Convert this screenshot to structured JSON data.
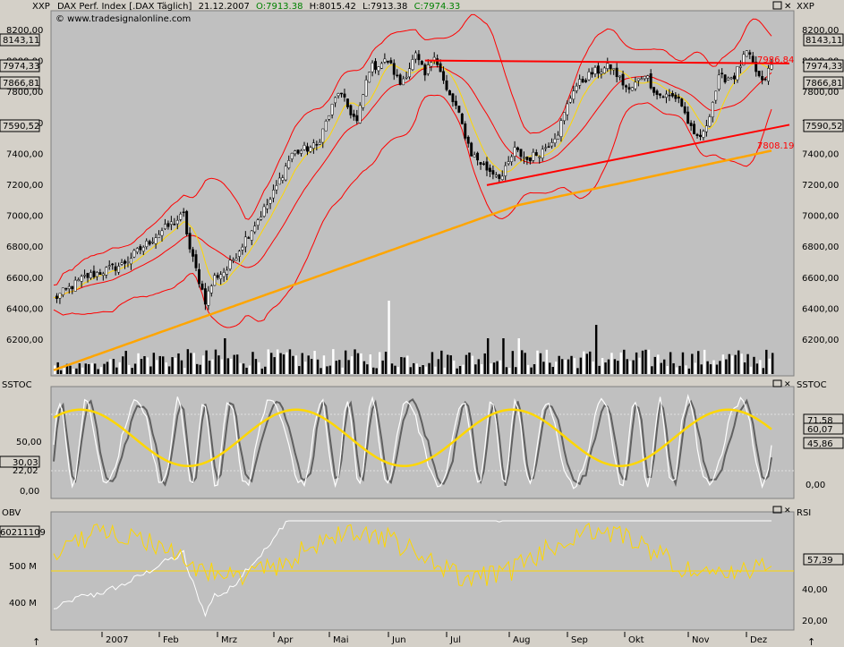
{
  "header": {
    "title": "DAX Perf. Index [.DAX  Täglich]",
    "date": "21.12.2007",
    "open": "O:7913.38",
    "high": "H:8015.42",
    "low": "L:7913.38",
    "close": "C:7974.33",
    "copyright": "© www.tradesignalonline.com",
    "left_symbol": "XXP",
    "right_symbol": "XXP"
  },
  "panels": {
    "stoch_label_left": "SSTOC",
    "stoch_label_right": "SSTOC",
    "obv_label": "OBV",
    "rsi_label": "RSI"
  },
  "price_badges": {
    "left": [
      "8143,11",
      "7974,33",
      "7866,81",
      "7590,52"
    ],
    "right": [
      "8143,11",
      "7974,33",
      "7866,81",
      "7590,52"
    ]
  },
  "annotations": {
    "upper_trend_value": "7986.84",
    "lower_trend_value": "7808.19"
  },
  "stoch_badges": {
    "left": [
      "30,03",
      "22,02"
    ],
    "right": [
      "71,58",
      "60,07",
      "45,86"
    ]
  },
  "obv_badges": {
    "left": "60211109",
    "right": "57,39"
  },
  "colors": {
    "background": "#c0c0c0",
    "bollinger": "#ff0000",
    "trendline": "#ff0000",
    "sma200": "#ffa500",
    "sma20": "#ffd700",
    "stoch_fast": "#ffffff",
    "stoch_slow": "#606060",
    "stoch_signal": "#ffd700",
    "obv": "#ffffff",
    "rsi": "#ffd700"
  },
  "chart_data": [
    {
      "type": "candlestick",
      "title": "DAX Perf. Index [.DAX  Täglich]",
      "y_ticks": [
        "8200,00",
        "8000,00",
        "7800,00",
        "7600,00",
        "7400,00",
        "7200,00",
        "7000,00",
        "6800,00",
        "6600,00",
        "6400,00",
        "6200,00"
      ],
      "y_tick_values": [
        8200,
        8000,
        7800,
        7600,
        7400,
        7200,
        7000,
        6800,
        6600,
        6400,
        6200
      ],
      "ylim": [
        6000,
        8280
      ],
      "x_labels": [
        "2007",
        "Feb",
        "Mrz",
        "Apr",
        "Mai",
        "Jun",
        "Jul",
        "Aug",
        "Sep",
        "Okt",
        "Nov",
        "Dez"
      ],
      "close_anchors": [
        [
          0,
          6460
        ],
        [
          10,
          6600
        ],
        [
          22,
          6680
        ],
        [
          35,
          6900
        ],
        [
          42,
          7000
        ],
        [
          44,
          6780
        ],
        [
          49,
          6450
        ],
        [
          52,
          6600
        ],
        [
          56,
          6650
        ],
        [
          62,
          6850
        ],
        [
          70,
          7100
        ],
        [
          77,
          7400
        ],
        [
          85,
          7450
        ],
        [
          92,
          7800
        ],
        [
          98,
          7600
        ],
        [
          102,
          7950
        ],
        [
          108,
          8000
        ],
        [
          112,
          7850
        ],
        [
          117,
          8030
        ],
        [
          120,
          7900
        ],
        [
          123,
          8050
        ],
        [
          127,
          7800
        ],
        [
          130,
          7700
        ],
        [
          135,
          7400
        ],
        [
          140,
          7300
        ],
        [
          145,
          7250
        ],
        [
          149,
          7420
        ],
        [
          153,
          7360
        ],
        [
          158,
          7420
        ],
        [
          163,
          7540
        ],
        [
          168,
          7820
        ],
        [
          174,
          7920
        ],
        [
          180,
          7960
        ],
        [
          186,
          7800
        ],
        [
          191,
          7920
        ],
        [
          195,
          7780
        ],
        [
          202,
          7760
        ],
        [
          207,
          7500
        ],
        [
          210,
          7520
        ],
        [
          215,
          7880
        ],
        [
          220,
          7900
        ],
        [
          224,
          8050
        ],
        [
          229,
          7850
        ],
        [
          232,
          7974
        ]
      ],
      "trendlines": [
        {
          "name": "upper",
          "start": [
            120,
            8000
          ],
          "end": [
            232,
            7975
          ],
          "label": "7986.84"
        },
        {
          "name": "lower",
          "start": [
            140,
            7195
          ],
          "end": [
            232,
            7550
          ],
          "label": "7808.19"
        }
      ],
      "indicators": [
        "Bollinger Bands",
        "SMA 200",
        "SMA 20",
        "Volume"
      ]
    },
    {
      "type": "line",
      "title": "SSTOC",
      "y_ticks_left": [
        "50,00",
        "0,00"
      ],
      "y_ticks_right": [
        "0,00"
      ],
      "ylim": [
        -10,
        110
      ],
      "levels": [
        80,
        20
      ],
      "series_badges": [
        "71,58",
        "60,07",
        "45,86",
        "30,03",
        "22,02"
      ]
    },
    {
      "type": "line",
      "title": "OBV / RSI",
      "y_ticks_left": [
        "500 M",
        "400 M"
      ],
      "y_ticks_right": [
        "40,00",
        "20,00"
      ],
      "rsi_level": 50,
      "rsi_last": "57,39",
      "obv_last": "60211109"
    }
  ]
}
